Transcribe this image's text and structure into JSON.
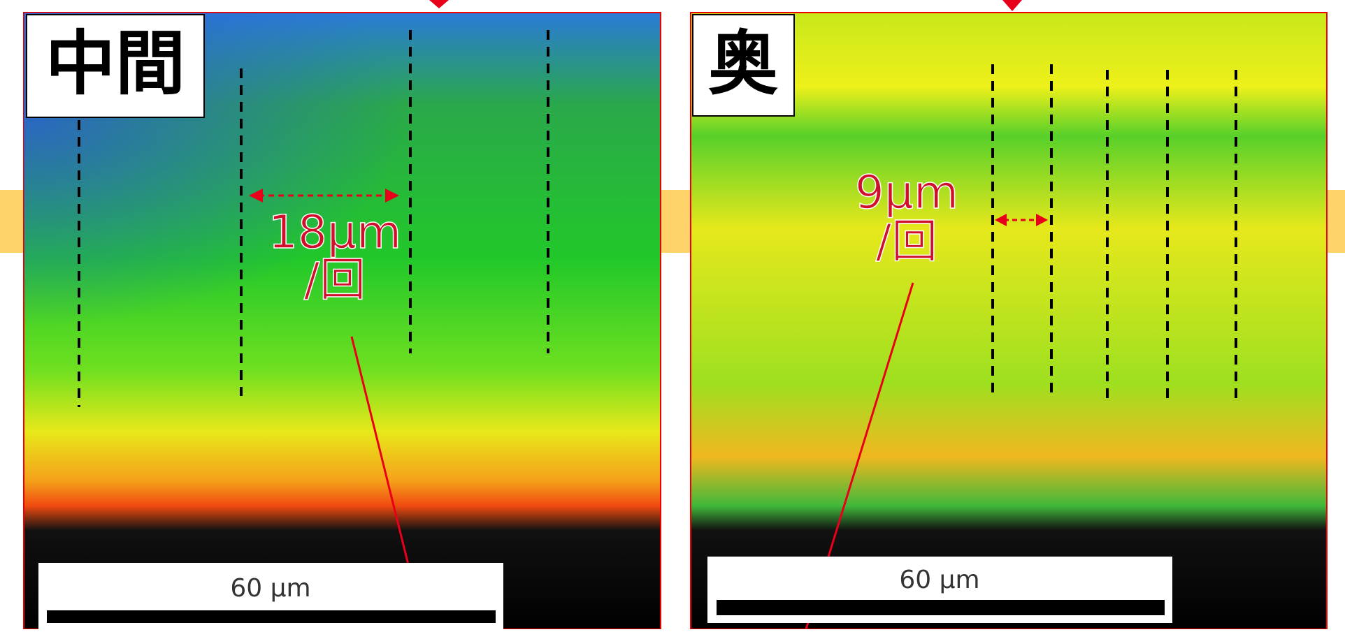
{
  "panels": [
    {
      "label": "中間",
      "annotation": "18μm",
      "annotation_unit": "/回",
      "scale_bar": "60 μm"
    },
    {
      "label": "奥",
      "annotation": "9μm",
      "annotation_unit": "/回",
      "scale_bar": "60 μm"
    }
  ]
}
